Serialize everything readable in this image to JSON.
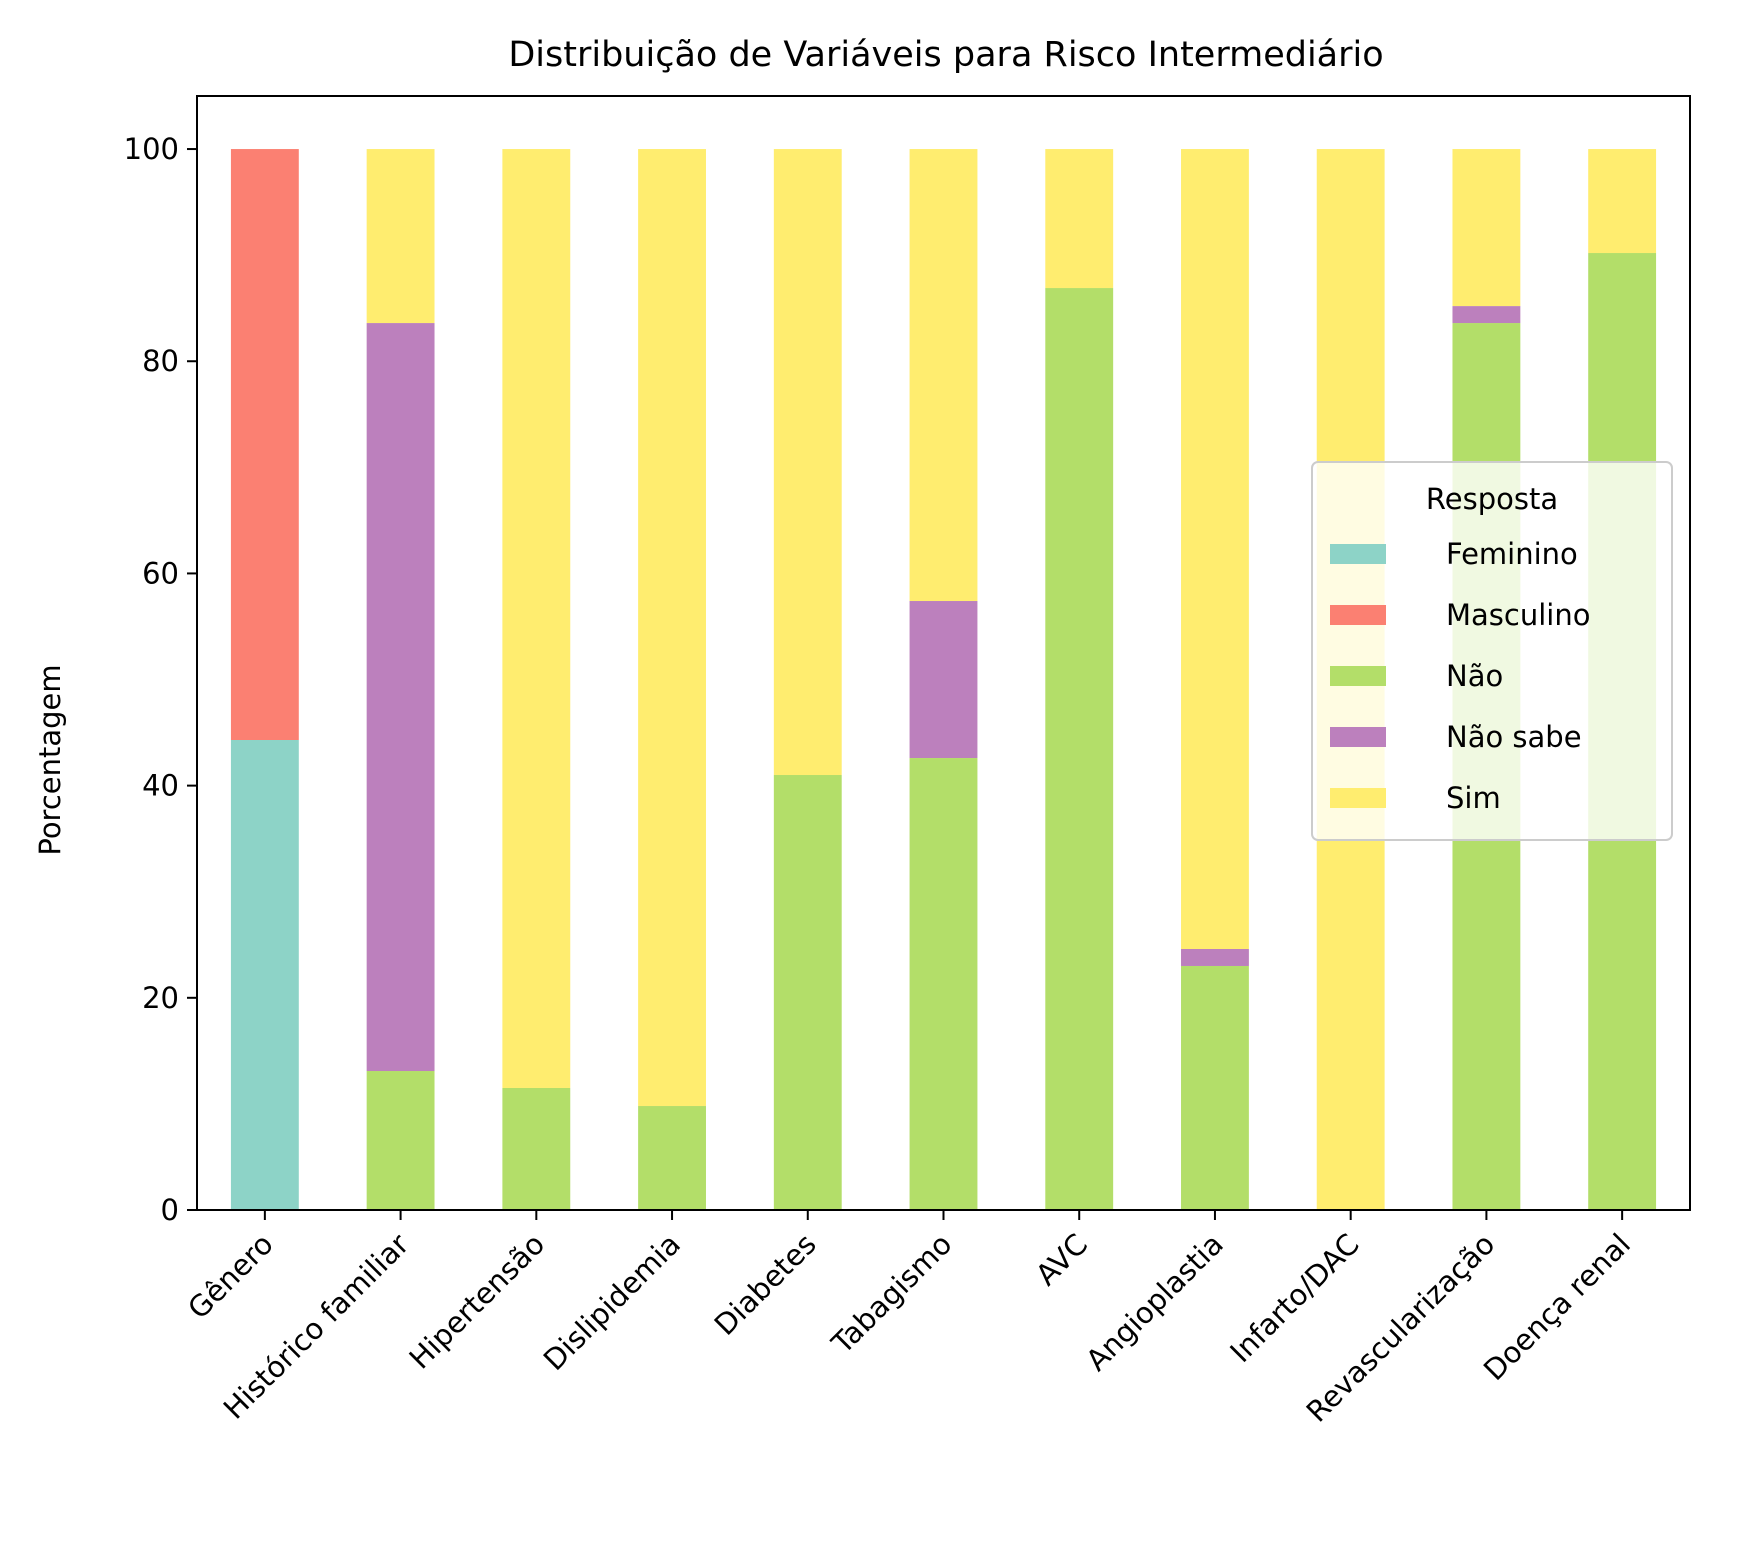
{
  "chart_data": {
    "type": "bar",
    "stacked": true,
    "title": "Distribuição de Variáveis para Risco Intermediário",
    "xlabel": "",
    "ylabel": "Porcentagem",
    "ylim": [
      0,
      105
    ],
    "yticks": [
      0,
      20,
      40,
      60,
      80,
      100
    ],
    "grid": false,
    "categories": [
      "Gênero",
      "Histórico familiar",
      "Hipertensão",
      "Dislipidemia",
      "Diabetes",
      "Tabagismo",
      "AVC",
      "Angioplastia",
      "Infarto/DAC",
      "Revascularização",
      "Doença renal"
    ],
    "legend": {
      "title": "Resposta",
      "placement": "center-right"
    },
    "series": [
      {
        "name": "Feminino",
        "color": "#8dd3c7",
        "values": [
          44.3,
          0,
          0,
          0,
          0,
          0,
          0,
          0,
          0,
          0,
          0
        ]
      },
      {
        "name": "Masculino",
        "color": "#fb8072",
        "values": [
          55.7,
          0,
          0,
          0,
          0,
          0,
          0,
          0,
          0,
          0,
          0
        ]
      },
      {
        "name": "Não",
        "color": "#b3de69",
        "values": [
          0,
          13.1,
          11.5,
          9.8,
          41.0,
          42.6,
          86.9,
          23.0,
          0,
          83.6,
          90.2
        ]
      },
      {
        "name": "Não sabe",
        "color": "#bc80bd",
        "values": [
          0,
          70.5,
          0,
          0,
          0,
          14.8,
          0,
          1.6,
          0,
          1.6,
          0
        ]
      },
      {
        "name": "Sim",
        "color": "#ffed6f",
        "values": [
          0,
          16.4,
          88.5,
          90.2,
          59.0,
          42.6,
          13.1,
          75.4,
          100,
          14.8,
          9.8
        ]
      }
    ]
  }
}
